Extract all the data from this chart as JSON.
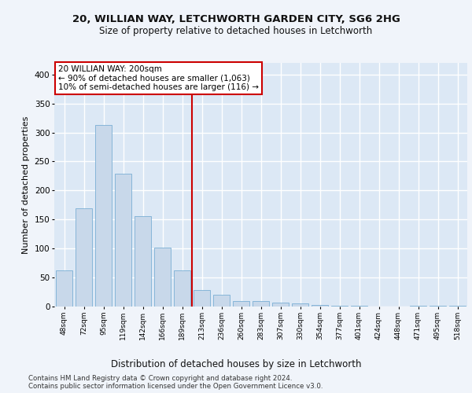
{
  "title1": "20, WILLIAN WAY, LETCHWORTH GARDEN CITY, SG6 2HG",
  "title2": "Size of property relative to detached houses in Letchworth",
  "xlabel": "Distribution of detached houses by size in Letchworth",
  "ylabel": "Number of detached properties",
  "categories": [
    "48sqm",
    "72sqm",
    "95sqm",
    "119sqm",
    "142sqm",
    "166sqm",
    "189sqm",
    "213sqm",
    "236sqm",
    "260sqm",
    "283sqm",
    "307sqm",
    "330sqm",
    "354sqm",
    "377sqm",
    "401sqm",
    "424sqm",
    "448sqm",
    "471sqm",
    "495sqm",
    "518sqm"
  ],
  "values": [
    62,
    170,
    313,
    229,
    156,
    102,
    62,
    28,
    21,
    9,
    10,
    7,
    5,
    3,
    1,
    1,
    0,
    0,
    2,
    1,
    1
  ],
  "bar_color": "#c8d8ea",
  "bar_edge_color": "#7aafd4",
  "background_color": "#dce8f5",
  "grid_color": "#ffffff",
  "vline_x": 7,
  "vline_color": "#cc0000",
  "annotation_text": "20 WILLIAN WAY: 200sqm\n← 90% of detached houses are smaller (1,063)\n10% of semi-detached houses are larger (116) →",
  "annotation_box_color": "#ffffff",
  "annotation_box_edge": "#cc0000",
  "footer1": "Contains HM Land Registry data © Crown copyright and database right 2024.",
  "footer2": "Contains public sector information licensed under the Open Government Licence v3.0.",
  "ylim": [
    0,
    420
  ],
  "yticks": [
    0,
    50,
    100,
    150,
    200,
    250,
    300,
    350,
    400
  ],
  "fig_bg": "#f0f4fa"
}
